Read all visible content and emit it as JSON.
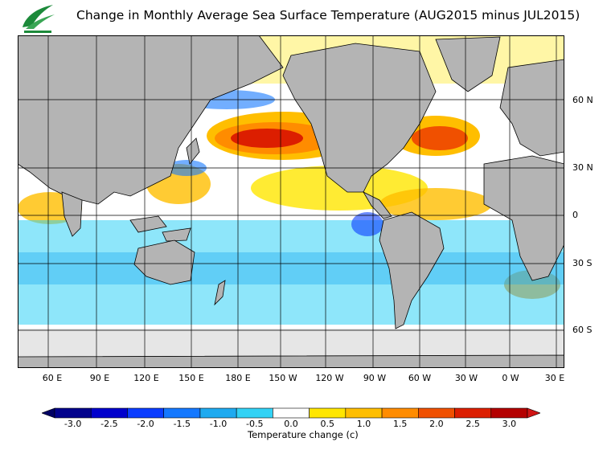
{
  "title": "Change in Monthly Average Sea Surface Temperature (AUG2015 minus JUL2015)",
  "logo": {
    "icon": "leaf-logo-icon",
    "color": "#1c8a3a"
  },
  "map": {
    "land_color": "#b4b4b4",
    "ice_color": "#e6e6e6",
    "grid_color": "#000000",
    "longitude_labels": [
      "60 E",
      "90 E",
      "120 E",
      "150 E",
      "180 E",
      "150 W",
      "120 W",
      "90 W",
      "60 W",
      "30 W",
      "0 W",
      "30 E"
    ],
    "latitude_labels": [
      "60 N",
      "30 N",
      "0",
      "30 S",
      "60 S"
    ]
  },
  "legend": {
    "title": "Temperature change  (c)",
    "tick_labels": [
      "-3.0",
      "-2.5",
      "-2.0",
      "-1.5",
      "-1.0",
      "-0.5",
      "0.0",
      "0.5",
      "1.0",
      "1.5",
      "2.0",
      "2.5",
      "3.0"
    ],
    "colors": [
      "#02028c",
      "#0000cc",
      "#0a3cff",
      "#1478ff",
      "#1eaaf0",
      "#32d2f5",
      "#ffffff",
      "#ffe600",
      "#ffbe00",
      "#ff8c00",
      "#f05000",
      "#dc1e00",
      "#b40000"
    ],
    "under_color": "#000064",
    "over_color": "#d01414"
  }
}
